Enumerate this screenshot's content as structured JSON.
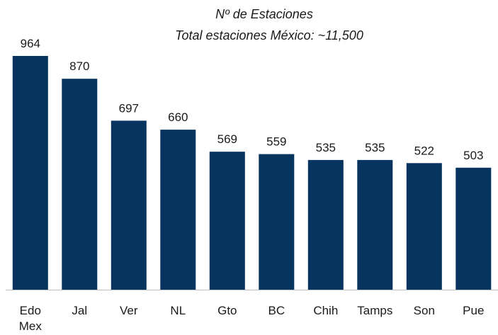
{
  "chart_data": {
    "type": "bar",
    "title": "Nº de Estaciones",
    "subtitle": "Total estaciones México: ~11,500",
    "categories": [
      [
        "Edo",
        "Mex"
      ],
      [
        "Jal"
      ],
      [
        "Ver"
      ],
      [
        "NL"
      ],
      [
        "Gto"
      ],
      [
        "BC"
      ],
      [
        "Chih"
      ],
      [
        "Tamps"
      ],
      [
        "Son"
      ],
      [
        "Pue"
      ]
    ],
    "values": [
      964,
      870,
      697,
      660,
      569,
      559,
      535,
      535,
      522,
      503
    ],
    "value_labels": [
      "964",
      "870",
      "697",
      "660",
      "569",
      "559",
      "535",
      "535",
      "522",
      "503"
    ],
    "xlabel": "",
    "ylabel": "",
    "ylim": [
      0,
      964
    ],
    "grid": false,
    "legend": "none",
    "bar_color": "#06345F",
    "axis_color": "#BFBFBF"
  }
}
